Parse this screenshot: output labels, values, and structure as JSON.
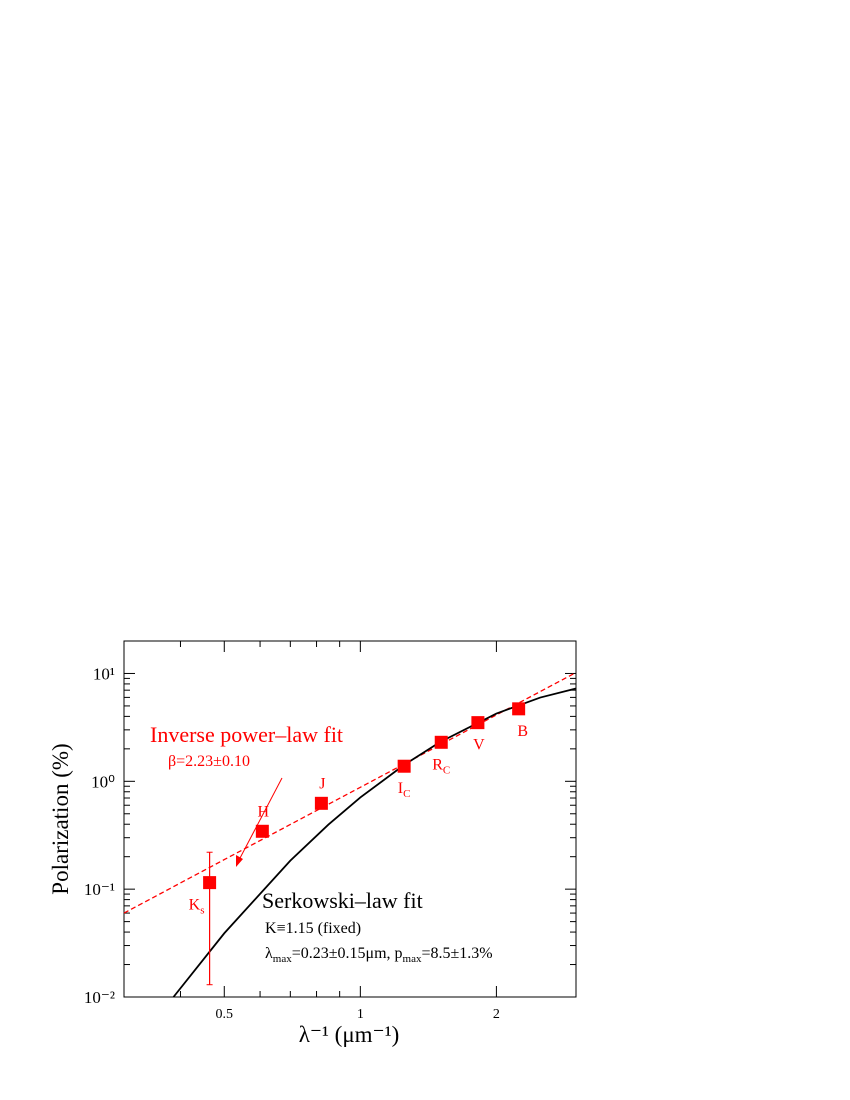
{
  "chart_data": {
    "type": "scatter",
    "x_label": "λ⁻¹  (μm⁻¹)",
    "y_label": "Polarization  (%)",
    "xscale": "log",
    "yscale": "log",
    "xlim": [
      0.3,
      3
    ],
    "ylim": [
      0.01,
      20
    ],
    "xticks": [
      0.5,
      1,
      2
    ],
    "xminorticks": [
      0.4,
      0.6,
      0.7,
      0.8,
      0.9
    ],
    "yticks": [
      {
        "value": 0.01,
        "label": "10⁻²"
      },
      {
        "value": 0.1,
        "label": "10⁻¹"
      },
      {
        "value": 1,
        "label": "10⁰"
      },
      {
        "value": 10,
        "label": "10¹"
      }
    ],
    "yminorticks": [
      0.02,
      0.03,
      0.04,
      0.05,
      0.06,
      0.07,
      0.08,
      0.09,
      0.2,
      0.3,
      0.4,
      0.5,
      0.6,
      0.7,
      0.8,
      0.9,
      2,
      3,
      4,
      5,
      6,
      7,
      8,
      9
    ],
    "series": [
      {
        "color": "#ff0000",
        "x": [
          0.464,
          0.607,
          0.82,
          1.25,
          1.51,
          1.82,
          2.24
        ],
        "values": [
          0.115,
          0.344,
          0.625,
          1.38,
          2.3,
          3.5,
          4.7
        ],
        "error_lower": [
          0.013,
          null,
          null,
          null,
          null,
          null,
          null
        ],
        "error_upper": [
          0.22,
          null,
          null,
          null,
          null,
          null,
          null
        ],
        "labels": [
          {
            "text": "K",
            "sub": "s"
          },
          {
            "text": "H"
          },
          {
            "text": "J"
          },
          {
            "text": "I",
            "sub": "C"
          },
          {
            "text": "R",
            "sub": "C"
          },
          {
            "text": "V"
          },
          {
            "text": "B"
          }
        ]
      }
    ],
    "lines": [
      {
        "color": "#ff0000",
        "dash": "dashed",
        "x": [
          0.3,
          0.5,
          1,
          2,
          3
        ],
        "values": [
          0.06,
          0.188,
          0.88,
          4.13,
          10.2
        ]
      },
      {
        "color": "#000000",
        "dash": "solid",
        "x": [
          0.386,
          0.5,
          0.7,
          0.85,
          1,
          1.25,
          1.5,
          2,
          2.5,
          3
        ],
        "values": [
          0.01,
          0.039,
          0.184,
          0.397,
          0.709,
          1.42,
          2.31,
          4.25,
          5.98,
          7.26
        ]
      }
    ],
    "annotations": {
      "power_title": "Inverse power–law fit",
      "power_beta": "β=2.23±0.10",
      "serk_title": "Serkowski–law fit",
      "serk_k": "K≡1.15  (fixed)",
      "serk_params": [
        "λ",
        "max",
        "=0.23±0.15μm,  p",
        "max",
        "=8.5±1.3%"
      ]
    }
  }
}
